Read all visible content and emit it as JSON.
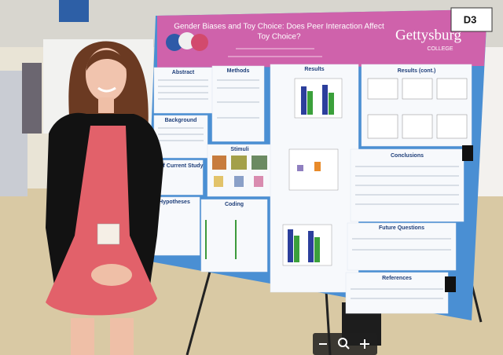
{
  "poster": {
    "title": [
      "Gender Biases and Toy Choice: Does Peer Interaction Affect",
      "Toy Choice?"
    ],
    "institution": "Gettysburg",
    "institution_sub": "COLLEGE",
    "sections": [
      "Abstract",
      "Background",
      "se of Current Study",
      "Hypotheses",
      "Methods",
      "Stimuli",
      "Coding",
      "Results",
      "Results (cont.)",
      "Conclusions",
      "Future Questions",
      "References"
    ]
  },
  "board_label": "D3"
}
